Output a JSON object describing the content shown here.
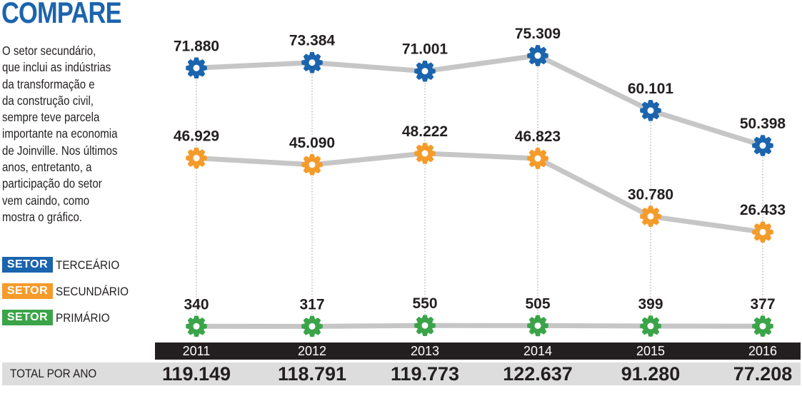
{
  "header": {
    "title": "COMPARE",
    "description_lines": [
      "O setor secundário,",
      "que inclui as indústrias",
      "da transformação e",
      "da construção civil,",
      "sempre teve parcela",
      "importante na economia",
      "de Joinville. Nos últimos",
      "anos, entretanto, a",
      "participação do setor",
      "vem caindo, como",
      "mostra o gráfico."
    ]
  },
  "legend": [
    {
      "badge": "SETOR",
      "label": "TERCEÁRIO",
      "color": "#1b64ae"
    },
    {
      "badge": "SETOR",
      "label": "SECUNDÁRIO",
      "color": "#f59b2a"
    },
    {
      "badge": "SETOR",
      "label": "PRIMÁRIO",
      "color": "#3ba449"
    }
  ],
  "totals_label": "TOTAL POR ANO",
  "chart_data": {
    "type": "line",
    "categories": [
      "2011",
      "2012",
      "2013",
      "2014",
      "2015",
      "2016"
    ],
    "series": [
      {
        "name": "TERCEÁRIO",
        "color": "#1b64ae",
        "values": [
          71880,
          73384,
          71001,
          75309,
          60101,
          50398
        ],
        "labels": [
          "71.880",
          "73.384",
          "71.001",
          "75.309",
          "60.101",
          "50.398"
        ]
      },
      {
        "name": "SECUNDÁRIO",
        "color": "#f59b2a",
        "values": [
          46929,
          45090,
          48222,
          46823,
          30780,
          26433
        ],
        "labels": [
          "46.929",
          "45.090",
          "48.222",
          "46.823",
          "30.780",
          "26.433"
        ]
      },
      {
        "name": "PRIMÁRIO",
        "color": "#3ba449",
        "values": [
          340,
          317,
          550,
          505,
          399,
          377
        ],
        "labels": [
          "340",
          "317",
          "550",
          "505",
          "399",
          "377"
        ]
      }
    ],
    "totals": [
      "119.149",
      "118.791",
      "119.773",
      "122.637",
      "91.280",
      "77.208"
    ],
    "line_color": "#c6c6c6",
    "grid": false
  }
}
